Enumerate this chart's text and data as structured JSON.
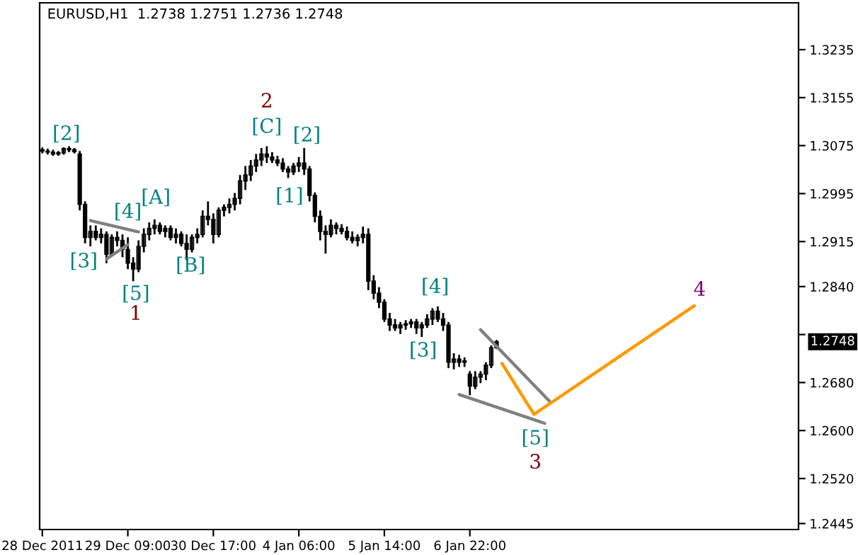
{
  "chart_data": {
    "type": "candlestick",
    "title": "EURUSD,H1  1.2738 1.2751 1.2736 1.2748",
    "categories": [
      "28 Dec 2011",
      null,
      null,
      null,
      null,
      null,
      null,
      null,
      null,
      null,
      null,
      null,
      null,
      null,
      null,
      null,
      "29 Dec 09:00",
      null,
      null,
      null,
      null,
      null,
      null,
      null,
      null,
      null,
      null,
      null,
      null,
      null,
      null,
      null,
      "30 Dec 17:00",
      null,
      null,
      null,
      null,
      null,
      null,
      null,
      null,
      null,
      null,
      null,
      null,
      null,
      null,
      null,
      "4 Jan 06:00",
      null,
      null,
      null,
      null,
      null,
      null,
      null,
      null,
      null,
      null,
      null,
      null,
      null,
      null,
      null,
      "5 Jan 14:00",
      null,
      null,
      null,
      null,
      null,
      null,
      null,
      null,
      null,
      null,
      null,
      null,
      null,
      null,
      null,
      "6 Jan 22:00",
      null,
      null,
      null,
      null,
      null,
      null,
      null,
      null,
      null,
      null,
      null,
      null,
      null,
      null,
      null,
      null,
      null,
      null,
      null,
      null,
      null,
      null,
      null,
      null,
      null,
      null,
      null,
      null,
      null,
      null,
      null,
      null,
      null,
      null,
      null,
      null,
      null,
      null,
      null,
      null,
      null,
      null,
      null,
      null,
      null,
      null,
      null,
      null,
      null,
      null,
      null,
      null,
      null,
      null,
      null,
      null,
      null,
      null,
      null,
      null,
      null
    ],
    "ylim": [
      1.2435,
      1.3313
    ],
    "yticks": [
      1.2445,
      {
        "value": 1.252,
        "label": "1.2520"
      },
      {
        "value": 1.26,
        "label": "1.2600"
      },
      {
        "value": 1.268,
        "label": "1.2680"
      },
      {
        "value": 1.276,
        "label": null
      },
      {
        "value": 1.284,
        "label": "1.2840"
      },
      1.2915,
      1.2995,
      1.3075,
      1.3155,
      1.3235
    ],
    "grid": false,
    "series": [
      {
        "color": "#000000",
        "ohlc": [
          [
            1.3068,
            1.3072,
            1.3062,
            1.3066
          ],
          [
            1.3066,
            1.307,
            1.306,
            1.3064
          ],
          [
            1.3064,
            1.3068,
            1.3058,
            1.3061
          ],
          [
            1.3061,
            1.3066,
            1.3058,
            1.3063
          ],
          [
            1.3063,
            1.3072,
            1.306,
            1.307
          ],
          [
            1.307,
            1.3074,
            1.3064,
            1.3068
          ],
          [
            1.3068,
            1.3071,
            1.3062,
            1.3065
          ],
          [
            1.3061,
            1.3066,
            1.2967,
            1.2977
          ],
          [
            1.2977,
            1.2982,
            1.2912,
            1.2922
          ],
          [
            1.2922,
            1.2942,
            1.2907,
            1.2932
          ],
          [
            1.2932,
            1.2942,
            1.2917,
            1.2922
          ],
          [
            1.2922,
            1.2937,
            1.2912,
            1.2927
          ],
          [
            1.2927,
            1.2932,
            1.2879,
            1.2894
          ],
          [
            1.2894,
            1.2927,
            1.2892,
            1.2922
          ],
          [
            1.2922,
            1.2932,
            1.2907,
            1.2917
          ],
          [
            1.2917,
            1.2927,
            1.2889,
            1.2902
          ],
          [
            1.2902,
            1.2922,
            1.2869,
            1.2879
          ],
          [
            1.2879,
            1.2889,
            1.2849,
            1.2869
          ],
          [
            1.2869,
            1.2917,
            1.2864,
            1.2907
          ],
          [
            1.2907,
            1.2937,
            1.2897,
            1.2927
          ],
          [
            1.2927,
            1.2947,
            1.2917,
            1.2937
          ],
          [
            1.2937,
            1.2952,
            1.2927,
            1.2942
          ],
          [
            1.2942,
            1.2947,
            1.2927,
            1.2932
          ],
          [
            1.2932,
            1.2942,
            1.2922,
            1.2937
          ],
          [
            1.2937,
            1.2942,
            1.2917,
            1.2922
          ],
          [
            1.2922,
            1.2937,
            1.2912,
            1.2927
          ],
          [
            1.2927,
            1.2932,
            1.2907,
            1.2912
          ],
          [
            1.2912,
            1.2927,
            1.2884,
            1.2902
          ],
          [
            1.2902,
            1.2927,
            1.2897,
            1.2922
          ],
          [
            1.2922,
            1.2937,
            1.2912,
            1.2927
          ],
          [
            1.2927,
            1.2967,
            1.2922,
            1.2957
          ],
          [
            1.2957,
            1.2982,
            1.2942,
            1.2952
          ],
          [
            1.2952,
            1.2962,
            1.2912,
            1.2927
          ],
          [
            1.2927,
            1.2972,
            1.2922,
            1.2967
          ],
          [
            1.2967,
            1.2977,
            1.2957,
            1.2972
          ],
          [
            1.2972,
            1.2987,
            1.2962,
            1.2977
          ],
          [
            1.2977,
            1.2996,
            1.2967,
            1.2987
          ],
          [
            1.2987,
            1.3026,
            1.2977,
            1.3016
          ],
          [
            1.3016,
            1.3041,
            1.3001,
            1.3026
          ],
          [
            1.3026,
            1.3051,
            1.3016,
            1.3041
          ],
          [
            1.3041,
            1.3061,
            1.3031,
            1.3051
          ],
          [
            1.3051,
            1.3071,
            1.3041,
            1.3061
          ],
          [
            1.3061,
            1.3074,
            1.3046,
            1.3056
          ],
          [
            1.3056,
            1.3064,
            1.3046,
            1.3051
          ],
          [
            1.3051,
            1.3058,
            1.3041,
            1.3046
          ],
          [
            1.3046,
            1.3054,
            1.3031,
            1.3036
          ],
          [
            1.3036,
            1.3041,
            1.3021,
            1.3031
          ],
          [
            1.3031,
            1.3046,
            1.3026,
            1.3041
          ],
          [
            1.3041,
            1.3056,
            1.3031,
            1.3046
          ],
          [
            1.3046,
            1.3071,
            1.3026,
            1.3036
          ],
          [
            1.3036,
            1.3041,
            1.2982,
            1.2992
          ],
          [
            1.2992,
            1.2997,
            1.2947,
            1.2957
          ],
          [
            1.2957,
            1.2967,
            1.2917,
            1.2932
          ],
          [
            1.2932,
            1.2942,
            1.2895,
            1.2927
          ],
          [
            1.2927,
            1.2952,
            1.2922,
            1.2942
          ],
          [
            1.2942,
            1.2947,
            1.2927,
            1.2937
          ],
          [
            1.2937,
            1.2944,
            1.2927,
            1.2932
          ],
          [
            1.2932,
            1.294,
            1.2917,
            1.2922
          ],
          [
            1.2922,
            1.2932,
            1.2912,
            1.2917
          ],
          [
            1.2917,
            1.2927,
            1.2907,
            1.2922
          ],
          [
            1.2922,
            1.294,
            1.2912,
            1.2927
          ],
          [
            1.2927,
            1.2937,
            1.2834,
            1.2849
          ],
          [
            1.2849,
            1.2859,
            1.2819,
            1.2829
          ],
          [
            1.2829,
            1.2839,
            1.2804,
            1.2814
          ],
          [
            1.2814,
            1.2819,
            1.2781,
            1.2786
          ],
          [
            1.2786,
            1.2796,
            1.2766,
            1.2776
          ],
          [
            1.2776,
            1.2786,
            1.2766,
            1.2771
          ],
          [
            1.2771,
            1.2781,
            1.2761,
            1.2776
          ],
          [
            1.2776,
            1.2784,
            1.2768,
            1.2778
          ],
          [
            1.2778,
            1.2786,
            1.2771,
            1.2781
          ],
          [
            1.2781,
            1.2786,
            1.2761,
            1.2771
          ],
          [
            1.2771,
            1.2781,
            1.2756,
            1.2776
          ],
          [
            1.2776,
            1.2794,
            1.2771,
            1.2786
          ],
          [
            1.2786,
            1.2804,
            1.2776,
            1.2799
          ],
          [
            1.2799,
            1.2807,
            1.2781,
            1.2786
          ],
          [
            1.2786,
            1.2796,
            1.2766,
            1.2776
          ],
          [
            1.2776,
            1.2781,
            1.2704,
            1.2714
          ],
          [
            1.2714,
            1.2729,
            1.2702,
            1.2719
          ],
          [
            1.2719,
            1.2726,
            1.2706,
            1.2714
          ],
          [
            1.2714,
            1.2722,
            1.2706,
            1.2716
          ],
          [
            1.2694,
            1.2699,
            1.2659,
            1.2674
          ],
          [
            1.2674,
            1.2699,
            1.2669,
            1.2689
          ],
          [
            1.2689,
            1.2699,
            1.2679,
            1.2694
          ],
          [
            1.2694,
            1.2714,
            1.2684,
            1.2709
          ],
          [
            1.2709,
            1.2742,
            1.2704,
            1.2738
          ],
          [
            1.2738,
            1.2751,
            1.2736,
            1.2748
          ],
          null,
          null,
          null,
          null,
          null,
          null,
          null,
          null,
          null,
          null,
          null,
          null,
          null,
          null,
          null,
          null,
          null,
          null,
          null,
          null,
          null,
          null,
          null,
          null,
          null,
          null,
          null,
          null,
          null,
          null,
          null,
          null,
          null,
          null,
          null,
          null,
          null,
          null,
          null,
          null,
          null,
          null,
          null,
          null,
          null,
          null,
          null,
          null,
          null,
          null,
          null,
          null,
          null,
          null,
          null,
          null
        ]
      },
      {
        "type": "line",
        "color": "#808080",
        "values": [
          null,
          null,
          null,
          null,
          null,
          null,
          null,
          null,
          null,
          1.295,
          null,
          null,
          null,
          null,
          null,
          null,
          null,
          null,
          1.2931,
          null,
          null,
          null,
          null,
          null,
          null,
          null,
          null,
          null,
          null,
          null,
          null,
          null,
          null,
          null,
          null,
          null,
          null,
          null,
          null,
          null,
          null,
          null,
          null,
          null,
          null,
          null,
          null,
          null,
          null,
          null,
          null,
          null,
          null,
          null,
          null,
          null,
          null,
          null,
          null,
          null,
          null,
          null,
          null,
          null,
          null,
          null,
          null,
          null,
          null,
          null,
          null,
          null,
          null,
          null,
          null,
          null,
          null,
          null,
          null,
          null,
          null,
          null,
          null,
          null,
          null,
          null,
          null,
          null,
          null,
          null,
          null,
          null,
          null,
          null,
          null,
          null,
          null,
          null,
          null,
          null,
          null,
          null,
          null,
          null,
          null,
          null,
          null,
          null,
          null,
          null,
          null,
          null,
          null,
          null,
          null,
          null,
          null,
          null,
          null,
          null,
          null,
          null,
          null,
          null,
          null,
          null,
          null,
          null,
          null,
          null,
          null,
          null,
          null,
          null,
          null,
          null,
          null,
          null,
          null,
          null,
          null,
          null
        ]
      },
      {
        "type": "line",
        "color": "#808080",
        "values": [
          null,
          null,
          null,
          null,
          null,
          null,
          null,
          null,
          null,
          null,
          null,
          null,
          1.2886,
          null,
          null,
          null,
          1.291,
          null,
          null,
          null,
          null,
          null,
          null,
          null,
          null,
          null,
          null,
          null,
          null,
          null,
          null,
          null,
          null,
          null,
          null,
          null,
          null,
          null,
          null,
          null,
          null,
          null,
          null,
          null,
          null,
          null,
          null,
          null,
          null,
          null,
          null,
          null,
          null,
          null,
          null,
          null,
          null,
          null,
          null,
          null,
          null,
          null,
          null,
          null,
          null,
          null,
          null,
          null,
          null,
          null,
          null,
          null,
          null,
          null,
          null,
          null,
          null,
          null,
          null,
          null,
          null,
          null,
          null,
          null,
          null,
          null,
          null,
          null,
          null,
          null,
          null,
          null,
          null,
          null,
          null,
          null,
          null,
          null,
          null,
          null,
          null,
          null,
          null,
          null,
          null,
          null,
          null,
          null,
          null,
          null,
          null,
          null,
          null,
          null,
          null,
          null,
          null,
          null,
          null,
          null,
          null,
          null,
          null,
          null,
          null,
          null,
          null,
          null,
          null,
          null,
          null,
          null,
          null,
          null,
          null,
          null,
          null,
          null,
          null,
          null,
          null,
          null
        ]
      },
      {
        "type": "line",
        "color": "#808080",
        "values": [
          null,
          null,
          null,
          null,
          null,
          null,
          null,
          null,
          null,
          null,
          null,
          null,
          null,
          null,
          null,
          null,
          null,
          null,
          null,
          null,
          null,
          null,
          null,
          null,
          null,
          null,
          null,
          null,
          null,
          null,
          null,
          null,
          null,
          null,
          null,
          null,
          null,
          null,
          null,
          null,
          null,
          null,
          null,
          null,
          null,
          null,
          null,
          null,
          null,
          null,
          null,
          null,
          null,
          null,
          null,
          null,
          null,
          null,
          null,
          null,
          null,
          null,
          null,
          null,
          null,
          null,
          null,
          null,
          null,
          null,
          null,
          null,
          null,
          null,
          null,
          null,
          null,
          null,
          null,
          null,
          null,
          null,
          1.2768,
          null,
          null,
          null,
          null,
          null,
          null,
          null,
          null,
          null,
          null,
          null,
          null,
          1.2648,
          null,
          null,
          null,
          null,
          null,
          null,
          null,
          null,
          null,
          null,
          null,
          null,
          null,
          null,
          null,
          null,
          null,
          null,
          null,
          null,
          null,
          null,
          null,
          null,
          null,
          null,
          null,
          null,
          null,
          null,
          null,
          null,
          null,
          null,
          null,
          null,
          null,
          null,
          null,
          null,
          null,
          null,
          null,
          null,
          null,
          null
        ]
      },
      {
        "type": "line",
        "color": "#808080",
        "values": [
          null,
          null,
          null,
          null,
          null,
          null,
          null,
          null,
          null,
          null,
          null,
          null,
          null,
          null,
          null,
          null,
          null,
          null,
          null,
          null,
          null,
          null,
          null,
          null,
          null,
          null,
          null,
          null,
          null,
          null,
          null,
          null,
          null,
          null,
          null,
          null,
          null,
          null,
          null,
          null,
          null,
          null,
          null,
          null,
          null,
          null,
          null,
          null,
          null,
          null,
          null,
          null,
          null,
          null,
          null,
          null,
          null,
          null,
          null,
          null,
          null,
          null,
          null,
          null,
          null,
          null,
          null,
          null,
          null,
          null,
          null,
          null,
          null,
          null,
          null,
          null,
          null,
          null,
          1.266,
          null,
          null,
          null,
          null,
          null,
          null,
          null,
          null,
          null,
          null,
          null,
          null,
          null,
          null,
          null,
          1.2612,
          null,
          null,
          null,
          null,
          null,
          null,
          null,
          null,
          null,
          null,
          null,
          null,
          null,
          null,
          null,
          null,
          null,
          null,
          null,
          null,
          null,
          null,
          null,
          null,
          null,
          null,
          null,
          null,
          null,
          null,
          null,
          null,
          null,
          null,
          null,
          null,
          null,
          null,
          null,
          null,
          null,
          null,
          null,
          null,
          null,
          null,
          null
        ]
      },
      {
        "type": "line",
        "color": "#ff9900",
        "values": [
          null,
          null,
          null,
          null,
          null,
          null,
          null,
          null,
          null,
          null,
          null,
          null,
          null,
          null,
          null,
          null,
          null,
          null,
          null,
          null,
          null,
          null,
          null,
          null,
          null,
          null,
          null,
          null,
          null,
          null,
          null,
          null,
          null,
          null,
          null,
          null,
          null,
          null,
          null,
          null,
          null,
          null,
          null,
          null,
          null,
          null,
          null,
          null,
          null,
          null,
          null,
          null,
          null,
          null,
          null,
          null,
          null,
          null,
          null,
          null,
          null,
          null,
          null,
          null,
          null,
          null,
          null,
          null,
          null,
          null,
          null,
          null,
          null,
          null,
          null,
          null,
          null,
          null,
          null,
          null,
          null,
          null,
          null,
          null,
          null,
          null,
          1.2712,
          null,
          null,
          null,
          null,
          null,
          1.2627,
          null,
          null,
          null,
          null,
          null,
          null,
          null,
          null,
          null,
          null,
          null,
          null,
          null,
          null,
          null,
          null,
          null,
          null,
          null,
          null,
          null,
          null,
          null,
          null,
          null,
          null,
          null,
          null,
          null,
          1.2808,
          null,
          null,
          null,
          null,
          null,
          null,
          null,
          null,
          null,
          null,
          null,
          null,
          null,
          null,
          null,
          null,
          null,
          null,
          null
        ]
      }
    ],
    "annotations": [
      "[2]",
      "[3]",
      "[4]",
      "[A]",
      "[5]",
      "1",
      "[B]",
      "2",
      "[C]",
      "[2]",
      "[1]",
      "[4]",
      "[3]",
      "[5]",
      "3",
      "4",
      "1.2748"
    ]
  }
}
